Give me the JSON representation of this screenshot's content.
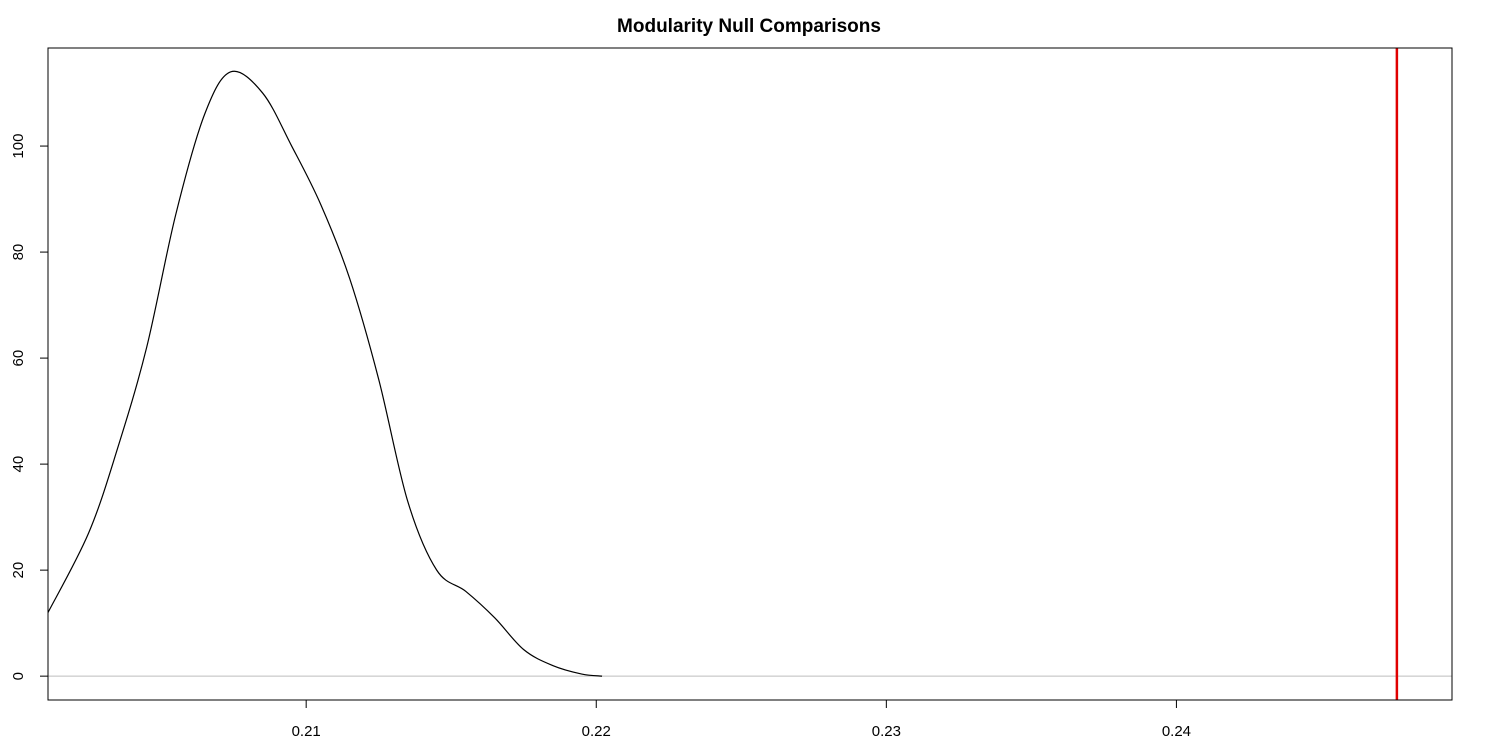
{
  "chart_data": {
    "type": "line",
    "title": "Modularity Null Comparisons",
    "xlabel": "",
    "ylabel": "",
    "xlim": [
      0.2011,
      0.2495
    ],
    "ylim": [
      -4.5,
      118.5
    ],
    "x_ticks": [
      0.21,
      0.22,
      0.23,
      0.24
    ],
    "y_ticks": [
      0,
      20,
      40,
      60,
      80,
      100
    ],
    "x_tick_labels": [
      "0.21",
      "0.22",
      "0.23",
      "0.24"
    ],
    "y_tick_labels": [
      "0",
      "20",
      "40",
      "60",
      "80",
      "100"
    ],
    "grid": false,
    "legend": "none",
    "series": [
      {
        "color": "#000000",
        "points": [
          [
            0.2011,
            12
          ],
          [
            0.2025,
            27
          ],
          [
            0.2035,
            43
          ],
          [
            0.2045,
            62
          ],
          [
            0.2055,
            87
          ],
          [
            0.2065,
            106
          ],
          [
            0.2074,
            114
          ],
          [
            0.2085,
            110
          ],
          [
            0.2095,
            100
          ],
          [
            0.2105,
            89
          ],
          [
            0.2115,
            75
          ],
          [
            0.2125,
            56
          ],
          [
            0.2135,
            33
          ],
          [
            0.2145,
            20
          ],
          [
            0.2155,
            16
          ],
          [
            0.2165,
            11
          ],
          [
            0.2175,
            5
          ],
          [
            0.2185,
            2
          ],
          [
            0.2195,
            0.4
          ],
          [
            0.2202,
            0
          ]
        ]
      }
    ],
    "baseline": {
      "y": 0,
      "color": "#bebebe"
    },
    "vline": {
      "x": 0.2476,
      "color": "#e00000"
    }
  }
}
